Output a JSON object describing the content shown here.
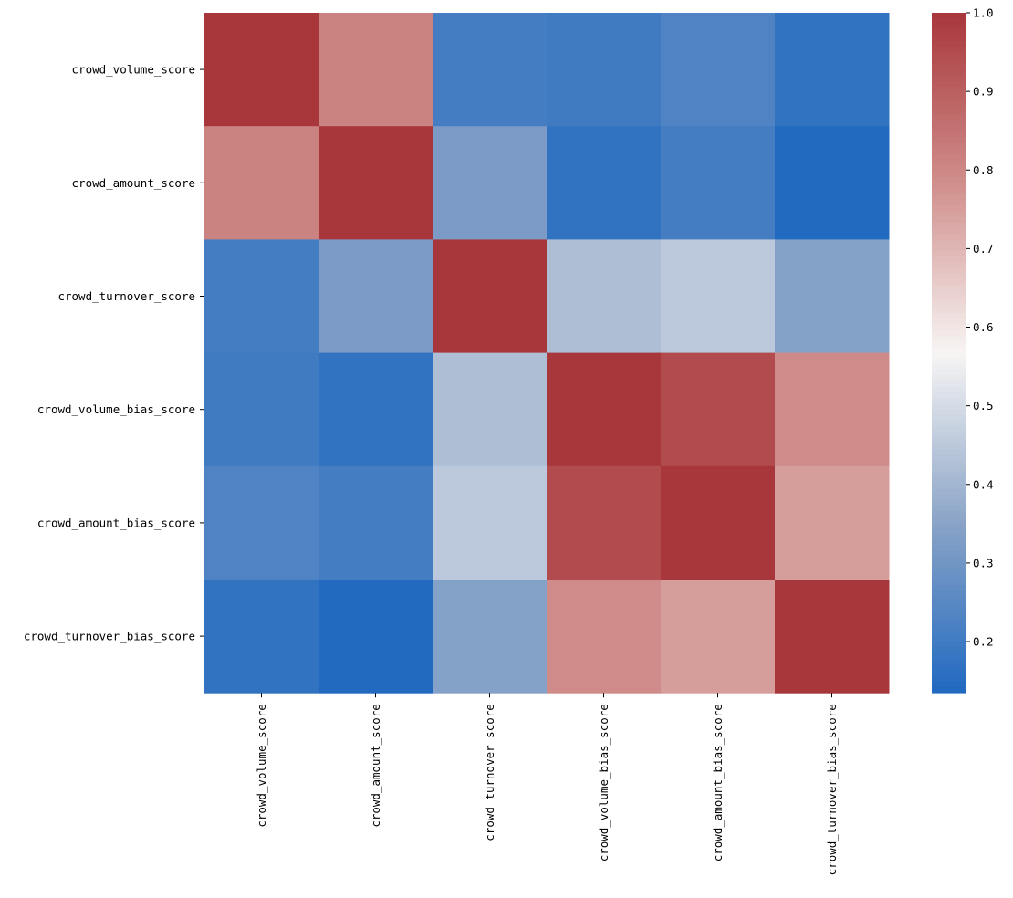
{
  "chart_data": {
    "type": "heatmap",
    "title": "",
    "xlabel": "",
    "ylabel": "",
    "row_labels": [
      "crowd_volume_score",
      "crowd_amount_score",
      "crowd_turnover_score",
      "crowd_volume_bias_score",
      "crowd_amount_bias_score",
      "crowd_turnover_bias_score"
    ],
    "col_labels": [
      "crowd_volume_score",
      "crowd_amount_score",
      "crowd_turnover_score",
      "crowd_volume_bias_score",
      "crowd_amount_bias_score",
      "crowd_turnover_bias_score"
    ],
    "values": [
      [
        1.0,
        0.81,
        0.21,
        0.2,
        0.23,
        0.17
      ],
      [
        0.81,
        1.0,
        0.32,
        0.17,
        0.21,
        0.14
      ],
      [
        0.21,
        0.32,
        1.0,
        0.42,
        0.45,
        0.34
      ],
      [
        0.2,
        0.17,
        0.42,
        1.0,
        0.95,
        0.79
      ],
      [
        0.23,
        0.21,
        0.45,
        0.95,
        1.0,
        0.75
      ],
      [
        0.17,
        0.14,
        0.34,
        0.79,
        0.75,
        1.0
      ]
    ],
    "colorbar": {
      "vmin": 0.135,
      "vmax": 1.0,
      "ticks": [
        0.2,
        0.3,
        0.4,
        0.5,
        0.6,
        0.7,
        0.8,
        0.9,
        1.0
      ],
      "tick_labels": [
        "0.2",
        "0.3",
        "0.4",
        "0.5",
        "0.6",
        "0.7",
        "0.8",
        "0.9",
        "1.0"
      ],
      "colormap": "vlag",
      "colormap_stops": [
        "#2069c0",
        "#8aa4c7",
        "#f7f5f4",
        "#d08e8b",
        "#a8373c"
      ]
    }
  }
}
